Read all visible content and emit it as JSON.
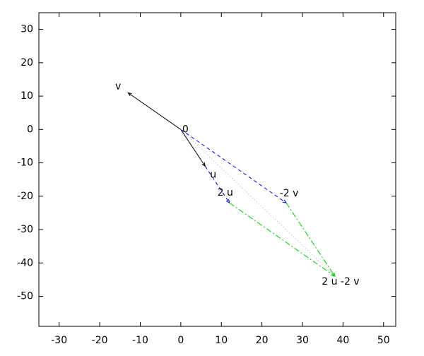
{
  "chart_data": {
    "type": "vector",
    "xlim": [
      -35,
      53
    ],
    "ylim": [
      -59,
      35
    ],
    "xticks": [
      -30,
      -20,
      -10,
      0,
      10,
      20,
      30,
      40,
      50
    ],
    "yticks": [
      -50,
      -40,
      -30,
      -20,
      -10,
      0,
      10,
      20,
      30
    ],
    "series": [
      {
        "color": "#000000",
        "style": "solid",
        "arrow": true,
        "x": [
          0,
          6
        ],
        "y": [
          0,
          -11
        ]
      },
      {
        "color": "#000000",
        "style": "solid",
        "arrow": true,
        "x": [
          0,
          -13
        ],
        "y": [
          0,
          11
        ]
      },
      {
        "color": "#0000ff",
        "style": "dashed",
        "arrow": true,
        "x": [
          6,
          12
        ],
        "y": [
          -11,
          -22
        ]
      },
      {
        "color": "#0000ff",
        "style": "dashed",
        "arrow": true,
        "x": [
          0,
          26
        ],
        "y": [
          0,
          -22
        ]
      },
      {
        "color": "#00cc00",
        "style": "dashdot",
        "arrow": true,
        "x": [
          12,
          38
        ],
        "y": [
          -22,
          -44
        ]
      },
      {
        "color": "#00cc00",
        "style": "dashdot",
        "arrow": true,
        "x": [
          26,
          38
        ],
        "y": [
          -22,
          -44
        ]
      },
      {
        "color": "#aaaaaa",
        "style": "dotted",
        "arrow": false,
        "x": [
          0,
          38
        ],
        "y": [
          0,
          -44
        ]
      }
    ],
    "points": [
      {
        "label": "0",
        "x": 0,
        "y": 0
      },
      {
        "label": "u",
        "x": 6,
        "y": -11
      },
      {
        "label": "v",
        "x": -13,
        "y": 11
      },
      {
        "label": "2 u",
        "x": 12,
        "y": -22
      },
      {
        "label": "-2 v",
        "x": 26,
        "y": -22
      },
      {
        "label": "2 u -2 v",
        "x": 38,
        "y": -44
      }
    ]
  }
}
